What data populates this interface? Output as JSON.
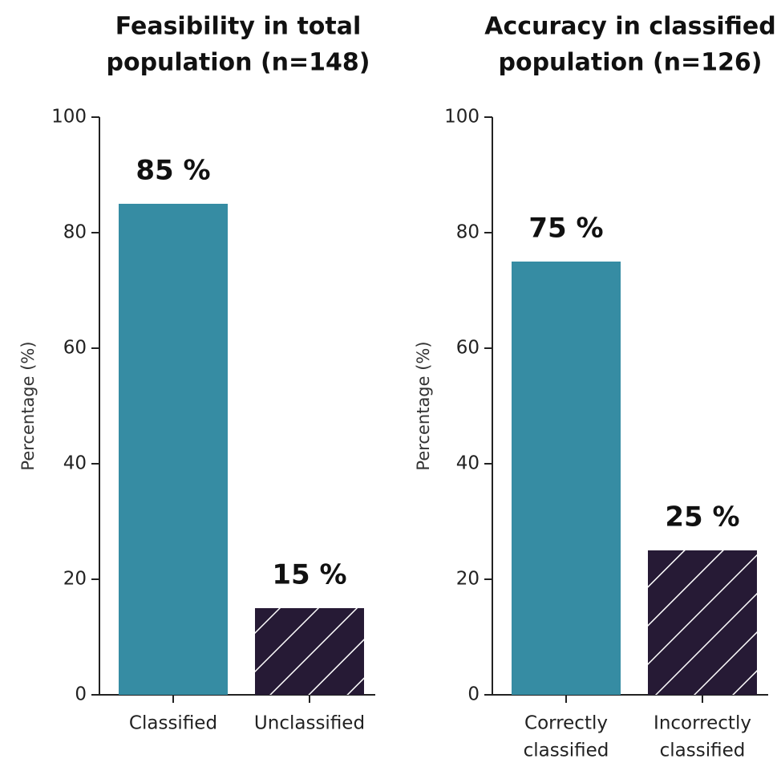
{
  "chart_data": [
    {
      "type": "bar",
      "title": [
        "Feasibility in total",
        "population (n=148)"
      ],
      "ylabel": "Percentage (%)",
      "xlabel": "",
      "ylim": [
        0,
        100
      ],
      "yticks": [
        "0",
        "20",
        "40",
        "60",
        "80",
        "100"
      ],
      "categories": [
        [
          "Classified"
        ],
        [
          "Unclassified"
        ]
      ],
      "values": [
        85,
        15
      ],
      "value_labels": [
        "85 %",
        "15 %"
      ],
      "fills": [
        "solid",
        "hatched"
      ],
      "grid": false
    },
    {
      "type": "bar",
      "title": [
        "Accuracy in classified",
        "population (n=126)"
      ],
      "ylabel": "Percentage (%)",
      "xlabel": "",
      "ylim": [
        0,
        100
      ],
      "yticks": [
        "0",
        "20",
        "40",
        "60",
        "80",
        "100"
      ],
      "categories": [
        [
          "Correctly",
          "classified"
        ],
        [
          "Incorrectly",
          "classified"
        ]
      ],
      "values": [
        75,
        25
      ],
      "value_labels": [
        "75 %",
        "25 %"
      ],
      "fills": [
        "solid",
        "hatched"
      ],
      "grid": false
    }
  ],
  "colors": {
    "solid_bar": "#368ca3",
    "hatched_bar": "#261a35",
    "hatch_line": "#ffffff",
    "axis": "#222222"
  }
}
